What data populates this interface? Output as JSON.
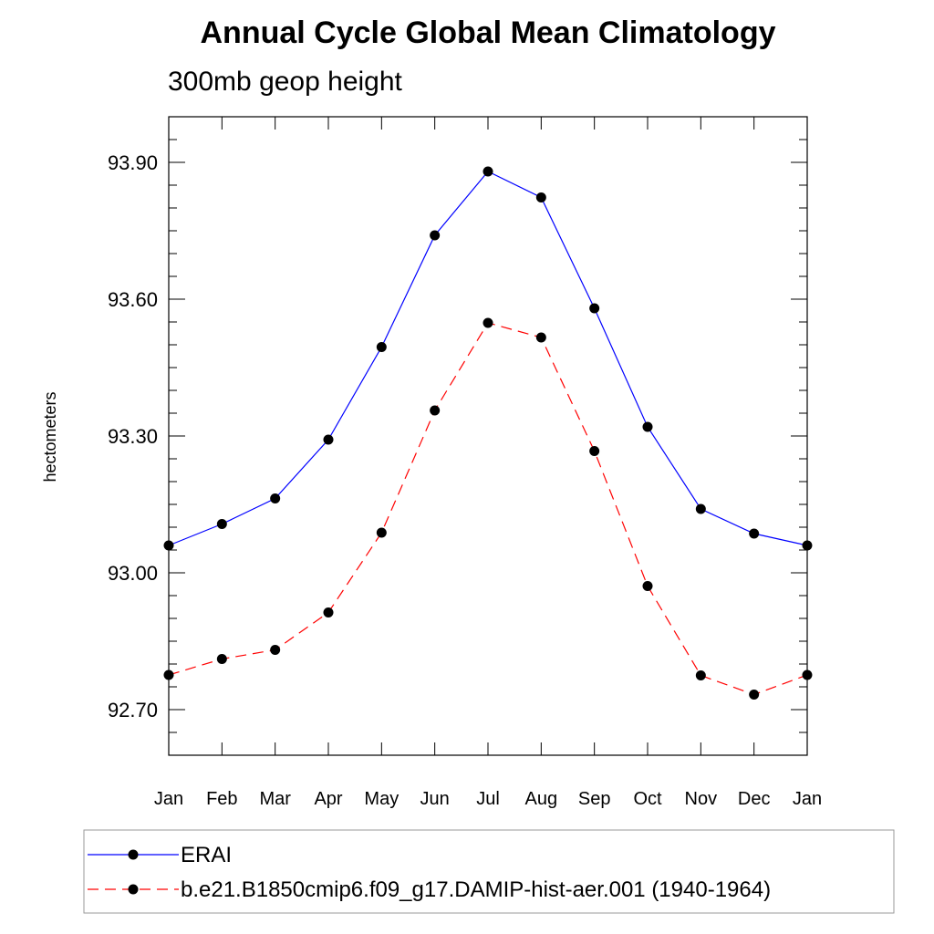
{
  "chart_data": {
    "type": "line",
    "title": "Annual Cycle Global Mean Climatology",
    "subtitle": "300mb geop height",
    "ylabel": "hectometers",
    "xlabel": "",
    "categories": [
      "Jan",
      "Feb",
      "Mar",
      "Apr",
      "May",
      "Jun",
      "Jul",
      "Aug",
      "Sep",
      "Oct",
      "Nov",
      "Dec",
      "Jan"
    ],
    "ylim": [
      92.6,
      94.0
    ],
    "yticks": [
      "93.90",
      "93.60",
      "93.30",
      "93.00",
      "92.70"
    ],
    "ytick_values": [
      93.9,
      93.6,
      93.3,
      93.0,
      92.7
    ],
    "grid": false,
    "legend_position": "bottom",
    "series": [
      {
        "name": "ERAI",
        "color": "#0000ff",
        "dash": "solid",
        "values": [
          93.06,
          93.107,
          93.163,
          93.292,
          93.495,
          93.74,
          93.88,
          93.823,
          93.58,
          93.32,
          93.14,
          93.086,
          93.06
        ]
      },
      {
        "name": "b.e21.B1850cmip6.f09_g17.DAMIP-hist-aer.001 (1940-1964)",
        "color": "#ff0000",
        "dash": "dashed",
        "values": [
          92.776,
          92.811,
          92.831,
          92.913,
          93.088,
          93.356,
          93.548,
          93.516,
          93.267,
          92.971,
          92.775,
          92.733,
          92.776
        ]
      }
    ]
  }
}
